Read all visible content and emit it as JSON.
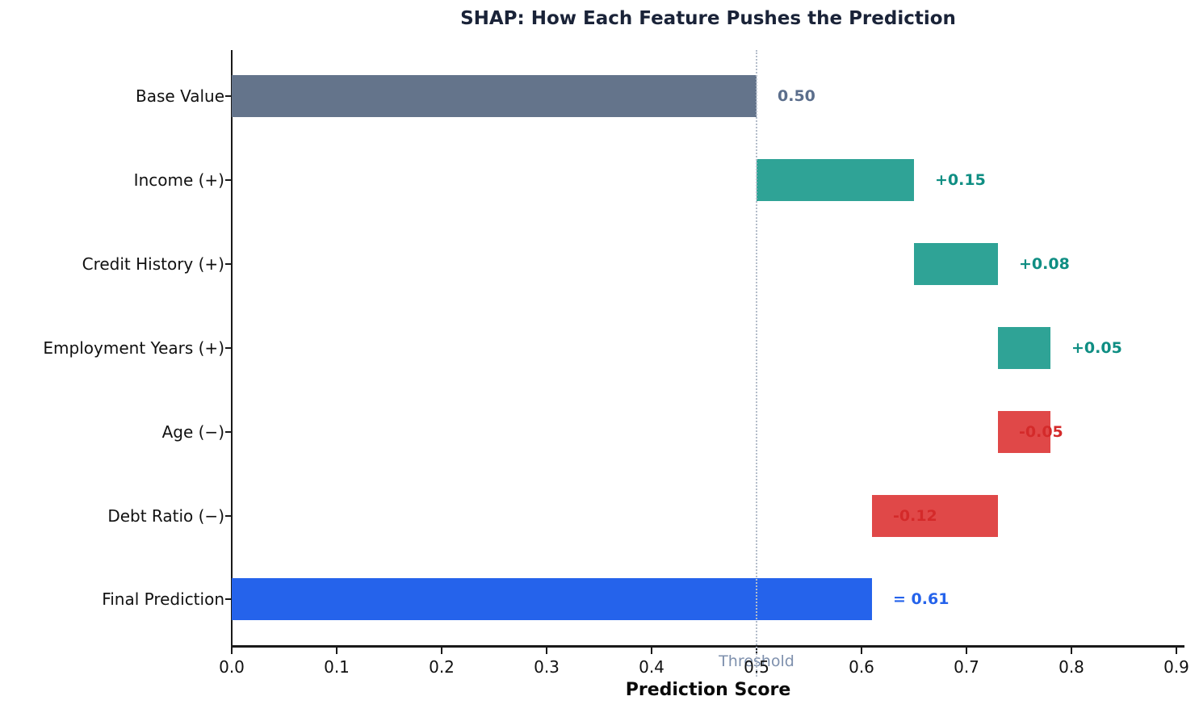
{
  "chart_data": {
    "type": "bar",
    "orientation": "horizontal-waterfall",
    "title": "SHAP: How Each Feature Pushes the Prediction",
    "xlabel": "Prediction Score",
    "xlim": [
      0.0,
      0.9
    ],
    "grid": false,
    "legend": "none",
    "xticks": [
      "0.0",
      "0.1",
      "0.2",
      "0.3",
      "0.4",
      "0.5",
      "0.6",
      "0.7",
      "0.8",
      "0.9"
    ],
    "threshold": {
      "value": 0.5,
      "label": "Threshold",
      "label_color": "#7e90ad",
      "line_color": "#b4bdca",
      "line_style": "dotted"
    },
    "bars": [
      {
        "category": "Base Value",
        "start": 0.0,
        "end": 0.5,
        "value": 0.5,
        "label": "0.50",
        "bar_color": "#64748b",
        "label_color": "#5b6e8c",
        "label_x": 0.52
      },
      {
        "category": "Income (+)",
        "start": 0.5,
        "end": 0.65,
        "value": 0.15,
        "label": "+0.15",
        "bar_color": "#2fa396",
        "label_color": "#0f8e83",
        "label_x": 0.67
      },
      {
        "category": "Credit History (+)",
        "start": 0.65,
        "end": 0.73,
        "value": 0.08,
        "label": "+0.08",
        "bar_color": "#2fa396",
        "label_color": "#0f8e83",
        "label_x": 0.75
      },
      {
        "category": "Employment Years (+)",
        "start": 0.73,
        "end": 0.78,
        "value": 0.05,
        "label": "+0.05",
        "bar_color": "#2fa396",
        "label_color": "#0f8e83",
        "label_x": 0.8
      },
      {
        "category": "Age (−)",
        "start": 0.73,
        "end": 0.78,
        "value": -0.05,
        "label": "-0.05",
        "bar_color": "#e04848",
        "label_color": "#d42a2a",
        "label_x": 0.75
      },
      {
        "category": "Debt Ratio (−)",
        "start": 0.61,
        "end": 0.73,
        "value": -0.12,
        "label": "-0.12",
        "bar_color": "#e04848",
        "label_color": "#d42a2a",
        "label_x": 0.63
      },
      {
        "category": "Final Prediction",
        "start": 0.0,
        "end": 0.61,
        "value": 0.61,
        "label": "= 0.61",
        "bar_color": "#2563eb",
        "label_color": "#2563eb",
        "label_x": 0.63
      }
    ],
    "colors": {
      "title": "#1a2338",
      "axis": "#1a1a1a",
      "base_bar": "#64748b",
      "positive_bar": "#2fa396",
      "negative_bar": "#e04848",
      "final_bar": "#2563eb"
    }
  }
}
